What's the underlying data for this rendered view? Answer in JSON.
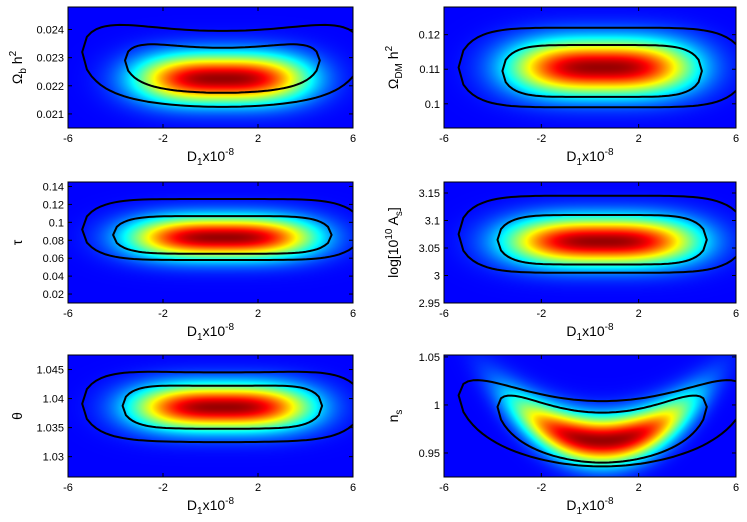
{
  "chart_data": [
    {
      "type": "heatmap",
      "panel": "top-left",
      "xlabel": {
        "base": "D",
        "sub": "1",
        "mid": "x10",
        "sup": "-8"
      },
      "ylabel": {
        "main": "Ω",
        "sub": "b",
        "rest": " h",
        "sup": "2"
      },
      "xlim": [
        -6,
        6
      ],
      "ylim": [
        0.0205,
        0.0248
      ],
      "xticks": [
        -6,
        -2,
        2,
        6
      ],
      "yticks": [
        0.021,
        0.022,
        0.023,
        0.024
      ],
      "ytick_labels": [
        "0.021",
        "0.022",
        "0.023",
        "0.024"
      ],
      "peak": {
        "x": 0.5,
        "y": 0.02225
      },
      "spread": {
        "x": 2.3,
        "y": 0.0006
      },
      "curvature": 0.0,
      "contours": [
        {
          "level": "1-sigma",
          "half_width": 4.1,
          "center": 0.02255,
          "thickness": 0.0008,
          "bend": 0.00035
        },
        {
          "level": "2-sigma",
          "half_width": 5.9,
          "center": 0.0226,
          "thickness": 0.00135,
          "bend": 0.0006
        }
      ]
    },
    {
      "type": "heatmap",
      "panel": "top-right",
      "xlabel": {
        "base": "D",
        "sub": "1",
        "mid": "x10",
        "sup": "-8"
      },
      "ylabel": {
        "main": "Ω",
        "sub": "DM",
        "rest": " h",
        "sup": "2"
      },
      "xlim": [
        -6,
        6
      ],
      "ylim": [
        0.093,
        0.128
      ],
      "xticks": [
        -6,
        -2,
        2,
        6
      ],
      "yticks": [
        0.1,
        0.11,
        0.12
      ],
      "ytick_labels": [
        "0.1",
        "0.11",
        "0.12"
      ],
      "peak": {
        "x": 0.5,
        "y": 0.1105
      },
      "spread": {
        "x": 2.4,
        "y": 0.0055
      },
      "curvature": 0.0,
      "contours": [
        {
          "level": "1-sigma",
          "half_width": 4.1,
          "center": 0.1095,
          "thickness": 0.0075,
          "bend": 0.0
        },
        {
          "level": "2-sigma",
          "half_width": 5.9,
          "center": 0.1105,
          "thickness": 0.0115,
          "bend": 0.0
        }
      ]
    },
    {
      "type": "heatmap",
      "panel": "middle-left",
      "xlabel": {
        "base": "D",
        "sub": "1",
        "mid": "x10",
        "sup": "-8"
      },
      "ylabel": {
        "main": "τ",
        "sub": "",
        "rest": "",
        "sup": ""
      },
      "xlim": [
        -6,
        6
      ],
      "ylim": [
        0.01,
        0.145
      ],
      "xticks": [
        -6,
        -2,
        2,
        6
      ],
      "yticks": [
        0.02,
        0.04,
        0.06,
        0.08,
        0.1,
        0.12,
        0.14
      ],
      "ytick_labels": [
        "0.02",
        "0.04",
        "0.06",
        "0.08",
        "0.1",
        "0.12",
        "0.14"
      ],
      "peak": {
        "x": 0.5,
        "y": 0.083
      },
      "spread": {
        "x": 2.5,
        "y": 0.016
      },
      "curvature": 0.0,
      "contours": [
        {
          "level": "1-sigma",
          "half_width": 4.6,
          "center": 0.086,
          "thickness": 0.021,
          "bend": 0.0
        },
        {
          "level": "2-sigma",
          "half_width": 5.9,
          "center": 0.092,
          "thickness": 0.034,
          "bend": 0.0
        }
      ]
    },
    {
      "type": "heatmap",
      "panel": "middle-right",
      "xlabel": {
        "base": "D",
        "sub": "1",
        "mid": "x10",
        "sup": "-8"
      },
      "ylabel": {
        "main": "log[10",
        "sub": "",
        "rest": " A",
        "sup": "10",
        "sub2": "s",
        "close": "]"
      },
      "xlim": [
        -6,
        6
      ],
      "ylim": [
        2.95,
        3.17
      ],
      "xticks": [
        -6,
        -2,
        2,
        6
      ],
      "yticks": [
        2.95,
        3,
        3.05,
        3.1,
        3.15
      ],
      "ytick_labels": [
        "2.95",
        "3",
        "3.05",
        "3.1",
        "3.15"
      ],
      "peak": {
        "x": 0.5,
        "y": 3.062
      },
      "spread": {
        "x": 2.5,
        "y": 0.03
      },
      "curvature": 0.0,
      "contours": [
        {
          "level": "1-sigma",
          "half_width": 4.3,
          "center": 3.065,
          "thickness": 0.045,
          "bend": 0.0
        },
        {
          "level": "2-sigma",
          "half_width": 5.9,
          "center": 3.075,
          "thickness": 0.07,
          "bend": 0.0
        }
      ]
    },
    {
      "type": "heatmap",
      "panel": "bottom-left",
      "xlabel": {
        "base": "D",
        "sub": "1",
        "mid": "x10",
        "sup": "-8"
      },
      "ylabel": {
        "main": "θ",
        "sub": "",
        "rest": "",
        "sup": ""
      },
      "xlim": [
        -6,
        6
      ],
      "ylim": [
        1.0265,
        1.0475
      ],
      "xticks": [
        -6,
        -2,
        2,
        6
      ],
      "yticks": [
        1.03,
        1.035,
        1.04,
        1.045
      ],
      "ytick_labels": [
        "1.03",
        "1.035",
        "1.04",
        "1.045"
      ],
      "peak": {
        "x": 0.5,
        "y": 1.0385
      },
      "spread": {
        "x": 2.4,
        "y": 0.0027
      },
      "curvature": 0.0,
      "contours": [
        {
          "level": "1-sigma",
          "half_width": 4.2,
          "center": 1.0385,
          "thickness": 0.0037,
          "bend": 0.00025
        },
        {
          "level": "2-sigma",
          "half_width": 5.9,
          "center": 1.0385,
          "thickness": 0.006,
          "bend": 0.0006
        }
      ]
    },
    {
      "type": "heatmap",
      "panel": "bottom-right",
      "xlabel": {
        "base": "D",
        "sub": "1",
        "mid": "x10",
        "sup": "-8"
      },
      "ylabel": {
        "main": "n",
        "sub": "s",
        "rest": "",
        "sup": ""
      },
      "xlim": [
        -6,
        6
      ],
      "ylim": [
        0.925,
        1.052
      ],
      "xticks": [
        -6,
        -2,
        2,
        6
      ],
      "yticks": [
        0.95,
        1,
        1.05
      ],
      "ytick_labels": [
        "0.95",
        "1",
        "1.05"
      ],
      "peak": {
        "x": 0.5,
        "y": 0.963
      },
      "spread": {
        "x": 2.3,
        "y": 0.017
      },
      "curvature": 0.0028,
      "contours": [
        {
          "level": "1-sigma",
          "half_width": 4.3,
          "center": 0.966,
          "thickness": 0.026,
          "bend": 0.032
        },
        {
          "level": "2-sigma",
          "half_width": 5.9,
          "center": 0.97,
          "thickness": 0.034,
          "bend": 0.04
        }
      ]
    }
  ]
}
